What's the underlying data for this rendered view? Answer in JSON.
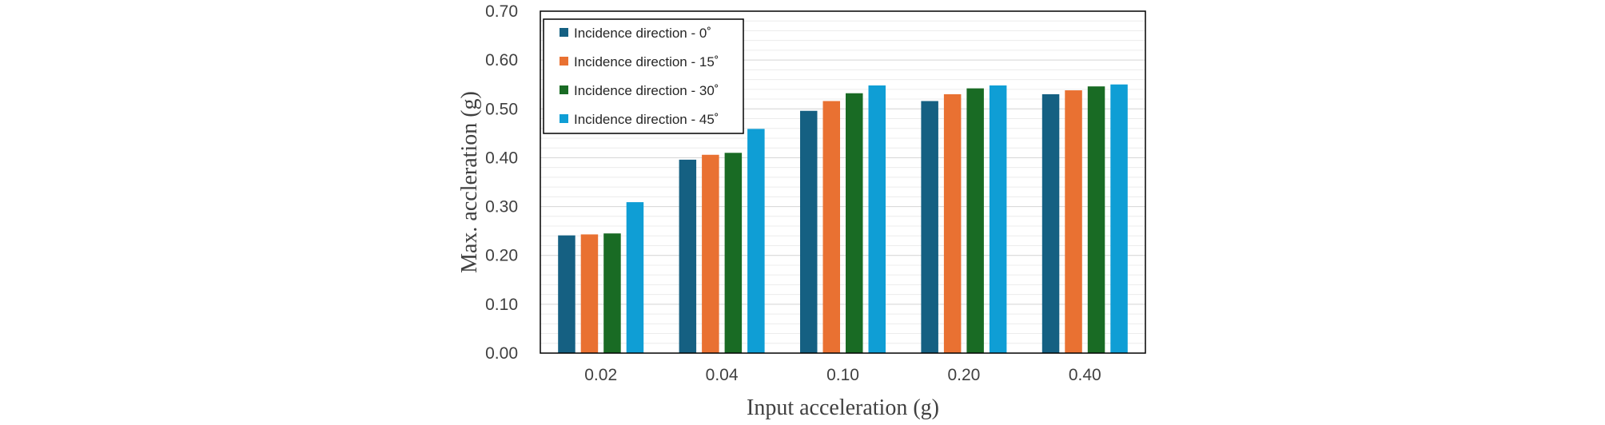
{
  "chart_data": {
    "type": "bar",
    "title": "",
    "xlabel": "Input acceleration (g)",
    "ylabel": "Max. accleration (g)",
    "categories": [
      "0.02",
      "0.04",
      "0.10",
      "0.20",
      "0.40"
    ],
    "ylim": [
      0,
      0.7
    ],
    "yticks": [
      "0.00",
      "0.10",
      "0.20",
      "0.30",
      "0.40",
      "0.50",
      "0.60",
      "0.70"
    ],
    "ytick_values": [
      0,
      0.1,
      0.2,
      0.3,
      0.4,
      0.5,
      0.6,
      0.7
    ],
    "minor_gridlines": true,
    "legend_position": "top-left",
    "series": [
      {
        "name": "Incidence direction - 0˚",
        "color": "#156082",
        "values": [
          0.241,
          0.396,
          0.496,
          0.516,
          0.53
        ]
      },
      {
        "name": "Incidence direction - 15˚",
        "color": "#E97132",
        "values": [
          0.243,
          0.406,
          0.516,
          0.53,
          0.538
        ]
      },
      {
        "name": "Incidence direction - 30˚",
        "color": "#196B24",
        "values": [
          0.245,
          0.41,
          0.532,
          0.542,
          0.546
        ]
      },
      {
        "name": "Incidence direction - 45˚",
        "color": "#0F9ED5",
        "values": [
          0.309,
          0.459,
          0.548,
          0.548,
          0.55
        ]
      }
    ]
  }
}
